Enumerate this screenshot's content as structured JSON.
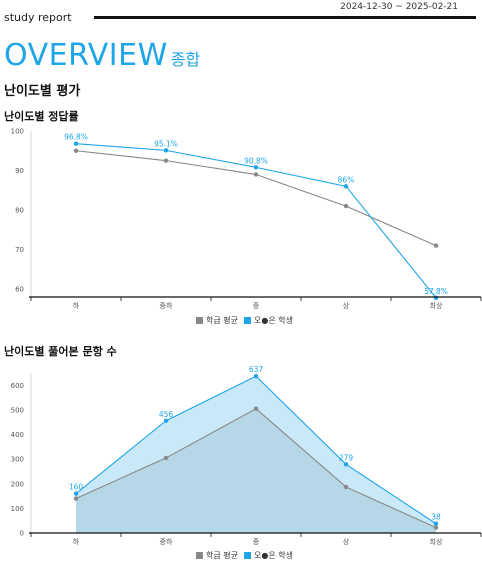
{
  "header": {
    "brand": "study report",
    "date_range": "2024-12-30 ~ 2025-02-21"
  },
  "overview": {
    "title": "OVERVIEW",
    "subtitle": "종합"
  },
  "section_title": "난이도별 평가",
  "colors": {
    "accent": "#1ea5e8",
    "average": "#888888",
    "area_student": "#c9e9f8",
    "area_average": "#b6d7e7"
  },
  "chart_data": [
    {
      "type": "line",
      "title": "난이도별 정답률",
      "categories": [
        "하",
        "중하",
        "중",
        "상",
        "최상"
      ],
      "ylim": [
        58,
        100
      ],
      "yticks": [
        60,
        70,
        80,
        90,
        100
      ],
      "grid": false,
      "legend_position": "bottom-center",
      "series": [
        {
          "name": "학급 평균",
          "values": [
            95,
            92.5,
            89,
            81,
            71
          ]
        },
        {
          "name": "오●은 학생",
          "values": [
            96.8,
            95.1,
            90.8,
            86,
            57.8
          ],
          "labels": [
            "96.8%",
            "95.1%",
            "90.8%",
            "86%",
            "57.8%"
          ]
        }
      ]
    },
    {
      "type": "area",
      "title": "난이도별 풀어본 문항 수",
      "categories": [
        "하",
        "중하",
        "중",
        "상",
        "최상"
      ],
      "ylim": [
        0,
        650
      ],
      "yticks": [
        0,
        100,
        200,
        300,
        400,
        500,
        600
      ],
      "grid": false,
      "legend_position": "bottom-center",
      "series": [
        {
          "name": "학급 평균",
          "values": [
            140,
            305,
            505,
            187,
            22
          ]
        },
        {
          "name": "오●은 학생",
          "values": [
            160,
            456,
            637,
            279,
            38
          ],
          "labels": [
            "160",
            "456",
            "637",
            "279",
            "38"
          ]
        }
      ]
    }
  ]
}
